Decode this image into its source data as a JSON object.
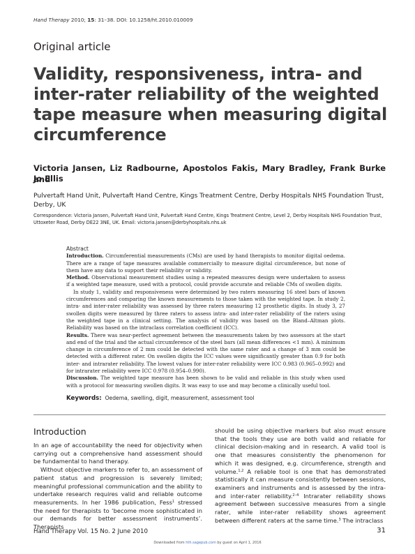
{
  "running_head": {
    "journal": "Hand Therapy",
    "citation": " 2010; ",
    "volume": "15",
    "pages_doi": ": 31–38. DOI: 10.1258/ht.2010.010009"
  },
  "article_type": "Original article",
  "title": "Validity, responsiveness, intra- and inter-rater reliability of the weighted tape measure when measuring digital circumference",
  "authors_line1": "Victoria Jansen, Liz Radbourne, Apostolos Fakis, Mary Bradley, Frank Burke and",
  "authors_line2": "Jo Ellis",
  "affiliation": "Pulvertaft Hand Unit, Pulvertaft Hand Centre, Kings Treatment Centre, Derby Hospitals NHS Foundation Trust, Derby, UK",
  "correspondence": "Correspondence: Victoria Jansen, Pulvertaft Hand Unit, Pulvertaft Hand Centre, Kings Treatment Centre, Level 2, Derby Hospitals NHS Foundation Trust, Uttoxeter Road, Derby DE22 3NE, UK. Email: victoria.jansen@derbyhospitals.nhs.uk",
  "abstract": {
    "heading": "Abstract",
    "intro_label": "Introduction.",
    "intro_text": " Circumferential measurements (CMs) are used by hand therapists to monitor digital oedema. There are a range of tape measures available commercially to measure digital circumference, but none of them have any data to support their reliability or validity.",
    "method_label": "Method.",
    "method_text": " Observational measurement studies using a repeated measures design were undertaken to assess if a weighted tape measure, used with a protocol, could provide accurate and reliable CMs of swollen digits.",
    "study_text": "In study 1, validity and responsiveness were determined by two raters measuring 16 steel bars of known circumferences and comparing the known measurements to those taken with the weighted tape. In study 2, intra- and inter-rater reliability was assessed by three raters measuring 12 prosthetic digits. In study 3, 27 swollen digits were measured by three raters to assess intra- and inter-rater reliability of the raters using the weighted tape in a clinical setting. The analysis of validity was based on the Bland–Altman plots. Reliability was based on the intraclass correlation coefficient (ICC).",
    "results_label": "Results.",
    "results_text": " There was near-perfect agreement between the measurements taken by two assessors at the start and end of the trial and the actual circumference of the steel bars (all mean differences <1 mm). A minimum change in circumference of 2 mm could be detected with the same rater and a change of 3 mm could be detected with a different rater. On swollen digits the ICC values were significantly greater than 0.9 for both inter- and intrarater reliability. The lowest values for inter-rater reliability were ICC 0.983 (0.965–0.992) and for intrarater reliability were ICC 0.978 (0.954–0.990).",
    "discussion_label": "Discussion.",
    "discussion_text": " The weighted tape measure has been shown to be valid and reliable in this study when used with a protocol for measuring swollen digits. It was easy to use and may become a clinically useful tool."
  },
  "keywords": {
    "label": "Keywords:",
    "text": "Oedema, swelling, digit, measurement, assessment tool"
  },
  "introduction": {
    "heading": "Introduction",
    "col1_p1": "In an age of accountability the need for objectivity when carrying out a comprehensive hand assessment should be fundamental to hand therapy.",
    "col1_p2a": "Without objective markers to refer to, an assessment of patient status and progression is severely limited; meaningful professional communication and the ability to undertake research requires valid and reliable outcome measurements. In her 1986 publication, Fess",
    "col1_sup1": "1",
    "col1_p2b": " stressed the need for therapists to ‘become more sophisticated in our demands for better assessment instruments’. Therapists",
    "col2_a": "should be using objective markers but also must ensure that the tools they use are both valid and reliable for clinical decision-making and in research. A valid tool is one that measures consistently the phenomenon for which it was designed, e.g. circumference, strength and volume.",
    "col2_sup1": "1,2",
    "col2_b": " A reliable tool is one that has demonstrated statistically it can measure consistently between sessions, examiners and instruments and is assessed by the intra- and inter-rater reliability.",
    "col2_sup2": "2–4",
    "col2_c": " Intrarater reliability shows agreement between successive measures from a single rater, while inter-rater reliability shows agreement between different raters at the same time.",
    "col2_sup3": "3",
    "col2_d": " The intraclass"
  },
  "footer": {
    "journal_info": "Hand Therapy  Vol. 15  No. 2  June 2010",
    "page_number": "31",
    "downloaded_prefix": "Downloaded from ",
    "downloaded_link": "hth.sagepub.com",
    "downloaded_suffix": " by guest on April 1, 2016"
  }
}
